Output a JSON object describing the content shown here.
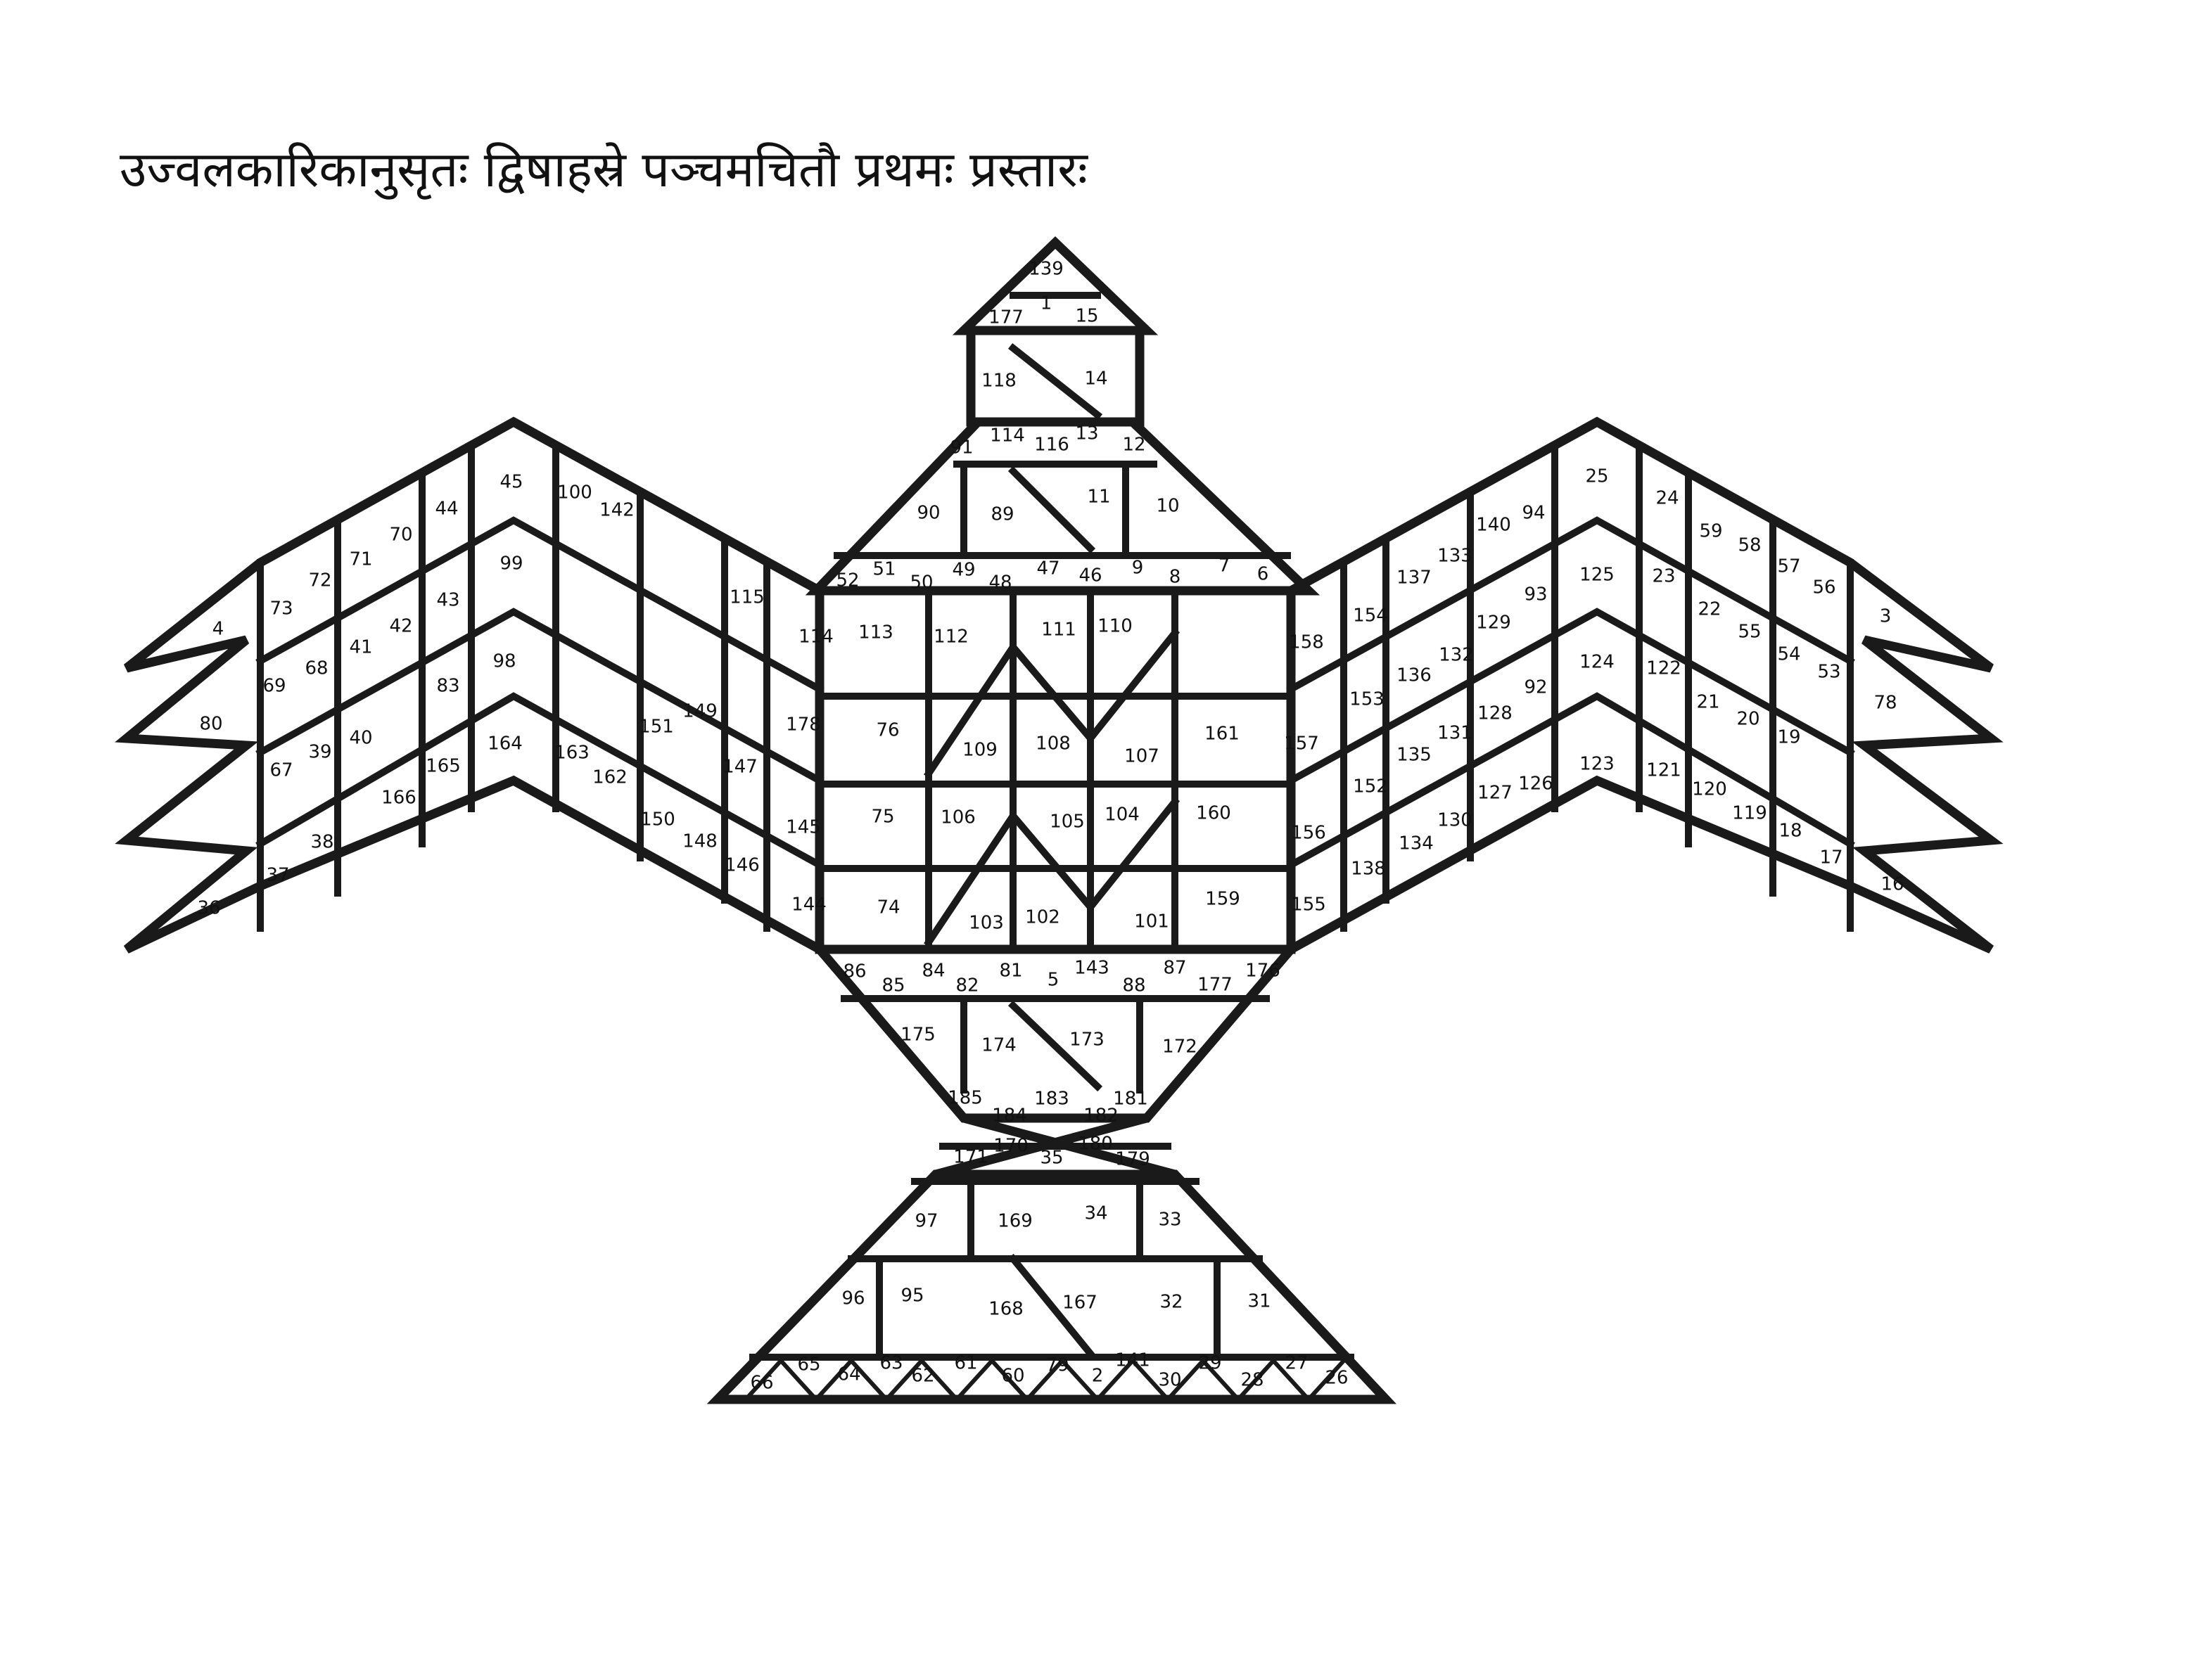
{
  "title": "उज्वलकारिकानुसृतः द्विषाहस्रे पञ्चमचितौ प्रथमः प्रस्तारः",
  "labels": [
    "139",
    "1",
    "177",
    "15",
    "118",
    "14",
    "91",
    "114",
    "116",
    "13",
    "12",
    "90",
    "89",
    "11",
    "10",
    "52",
    "51",
    "50",
    "49",
    "48",
    "47",
    "46",
    "9",
    "8",
    "7",
    "6",
    "113",
    "112",
    "111",
    "110",
    "114",
    "109",
    "108",
    "107",
    "76",
    "106",
    "105",
    "104",
    "75",
    "103",
    "102",
    "101",
    "74",
    "86",
    "85",
    "84",
    "82",
    "81",
    "5",
    "143",
    "88",
    "87",
    "177",
    "176",
    "175",
    "174",
    "173",
    "172",
    "185",
    "184",
    "183",
    "182",
    "181",
    "171",
    "170",
    "35",
    "180",
    "179",
    "97",
    "169",
    "34",
    "33",
    "96",
    "95",
    "168",
    "167",
    "32",
    "31",
    "66",
    "65",
    "64",
    "63",
    "62",
    "61",
    "60",
    "79",
    "2",
    "141",
    "30",
    "29",
    "28",
    "27",
    "26",
    "4",
    "73",
    "72",
    "71",
    "70",
    "44",
    "45",
    "100",
    "142",
    "115",
    "69",
    "68",
    "41",
    "42",
    "43",
    "99",
    "80",
    "67",
    "39",
    "40",
    "83",
    "98",
    "151",
    "149",
    "147",
    "178",
    "37",
    "38",
    "166",
    "165",
    "164",
    "163",
    "162",
    "150",
    "148",
    "146",
    "145",
    "36",
    "144",
    "25",
    "24",
    "59",
    "58",
    "57",
    "56",
    "3",
    "94",
    "140",
    "133",
    "137",
    "154",
    "158",
    "125",
    "23",
    "22",
    "55",
    "54",
    "53",
    "78",
    "93",
    "129",
    "132",
    "136",
    "153",
    "124",
    "122",
    "21",
    "20",
    "19",
    "92",
    "128",
    "131",
    "135",
    "161",
    "157",
    "123",
    "121",
    "120",
    "119",
    "18",
    "17",
    "16",
    "126",
    "127",
    "130",
    "152",
    "156",
    "160",
    "134",
    "138",
    "155",
    "159"
  ]
}
